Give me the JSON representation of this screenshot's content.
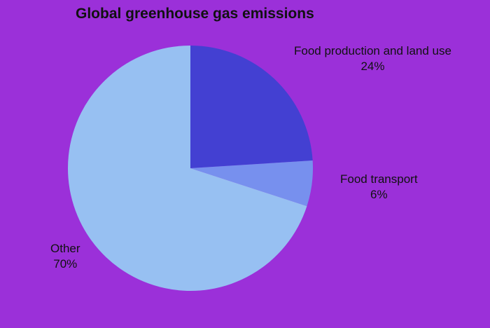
{
  "chart_data": {
    "type": "pie",
    "title": "Global greenhouse gas emissions",
    "slices": [
      {
        "label": "Food production and land use",
        "value": 24,
        "value_label": "24%",
        "color": "#4340d2"
      },
      {
        "label": "Food transport",
        "value": 6,
        "value_label": "6%",
        "color": "#7790ee"
      },
      {
        "label": "Other",
        "value": 70,
        "value_label": "70%",
        "color": "#97c0f2"
      }
    ],
    "start_angle_deg": 0,
    "direction": "clockwise",
    "background": "#9b30d9"
  }
}
